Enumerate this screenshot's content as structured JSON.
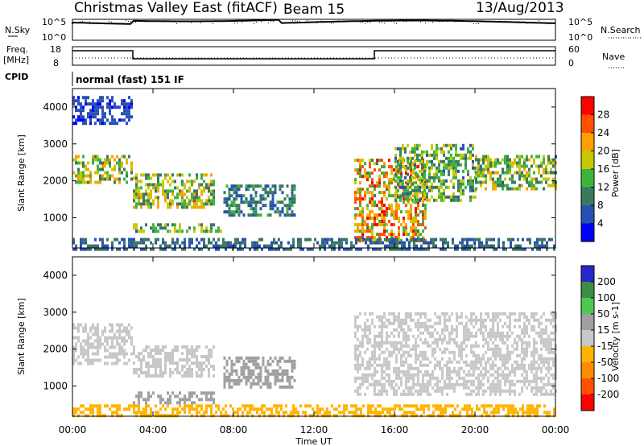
{
  "header": {
    "station": "Christmas Valley East (fitACF)",
    "beam": "Beam 15",
    "date": "13/Aug/2013"
  },
  "strips": {
    "nsky_label": "N.Sky",
    "nsky_ticks": [
      "10^5",
      "10^0"
    ],
    "nsearch_label": "N.Search",
    "freq_label_line1": "Freq.",
    "freq_label_line2": "[MHz]",
    "freq_ticks": [
      "18",
      "8"
    ],
    "nave_label": "Nave",
    "nave_ticks": [
      "60",
      "0"
    ],
    "cpid_label": "CPID",
    "cpid_value": "normal (fast) 151 IF"
  },
  "chart_data": [
    {
      "type": "heatmap",
      "panel": "power",
      "xlabel": "Time UT",
      "ylabel": "Slant Range [km]",
      "x_ticks": [
        "00:00",
        "04:00",
        "08:00",
        "12:00",
        "16:00",
        "20:00",
        "00:00"
      ],
      "x_range_hours": [
        0,
        24
      ],
      "y_ticks": [
        1000,
        2000,
        3000,
        4000
      ],
      "ylim": [
        180,
        4500
      ],
      "colorbar_label": "Power [dB]",
      "colorbar_ticks": [
        4,
        8,
        12,
        16,
        20,
        24,
        28
      ],
      "colorbar_range": [
        0,
        32
      ],
      "colorscale": [
        "#0000ff",
        "#2850b4",
        "#3c7860",
        "#3cb43c",
        "#c8c800",
        "#ffa000",
        "#ff5000",
        "#ff0000"
      ],
      "features": [
        {
          "t0": 0.0,
          "t1": 3.0,
          "r0": 1950,
          "r1": 2700,
          "peak_db": 24
        },
        {
          "t0": 0.0,
          "t1": 3.0,
          "r0": 3600,
          "r1": 4300,
          "peak_db": 8
        },
        {
          "t0": 3.0,
          "t1": 7.0,
          "r0": 1300,
          "r1": 2200,
          "peak_db": 24
        },
        {
          "t0": 3.0,
          "t1": 7.5,
          "r0": 650,
          "r1": 850,
          "peak_db": 20
        },
        {
          "t0": 7.5,
          "t1": 11.0,
          "r0": 1100,
          "r1": 1900,
          "peak_db": 14
        },
        {
          "t0": 14.0,
          "t1": 17.5,
          "r0": 400,
          "r1": 2600,
          "peak_db": 30
        },
        {
          "t0": 16.0,
          "t1": 20.0,
          "r0": 1500,
          "r1": 3000,
          "peak_db": 20
        },
        {
          "t0": 20.0,
          "t1": 24.0,
          "r0": 1800,
          "r1": 2700,
          "peak_db": 22
        },
        {
          "t0": 0.0,
          "t1": 24.0,
          "r0": 180,
          "r1": 450,
          "peak_db": 12
        }
      ]
    },
    {
      "type": "heatmap",
      "panel": "velocity",
      "xlabel": "Time UT",
      "ylabel": "Slant Range [km]",
      "x_ticks": [
        "00:00",
        "04:00",
        "08:00",
        "12:00",
        "16:00",
        "20:00",
        "00:00"
      ],
      "x_range_hours": [
        0,
        24
      ],
      "y_ticks": [
        1000,
        2000,
        3000,
        4000
      ],
      "ylim": [
        180,
        4500
      ],
      "colorbar_label": "Velocity [m s-1]",
      "colorbar_ticks": [
        200,
        100,
        50,
        15,
        -15,
        -50,
        -100,
        -200
      ],
      "colorbar_range": [
        -250,
        250
      ],
      "colorscale_top_to_bottom": [
        "#2828c8",
        "#3c8c46",
        "#50c850",
        "#a0a0a0",
        "#c8c8c8",
        "#ffb400",
        "#ff8c00",
        "#ff5000",
        "#ff0000"
      ],
      "features": [
        {
          "t0": 0.0,
          "t1": 3.0,
          "r0": 1600,
          "r1": 2700,
          "velocity": 0
        },
        {
          "t0": 3.0,
          "t1": 7.0,
          "r0": 1300,
          "r1": 2100,
          "velocity": 0
        },
        {
          "t0": 7.5,
          "t1": 11.0,
          "r0": 1000,
          "r1": 1800,
          "velocity": 60
        },
        {
          "t0": 3.0,
          "t1": 7.0,
          "r0": 550,
          "r1": 850,
          "velocity": 60
        },
        {
          "t0": 14.0,
          "t1": 24.0,
          "r0": 800,
          "r1": 3000,
          "velocity": 0
        },
        {
          "t0": 0.0,
          "t1": 24.0,
          "r0": 180,
          "r1": 500,
          "velocity": -60
        }
      ]
    }
  ]
}
